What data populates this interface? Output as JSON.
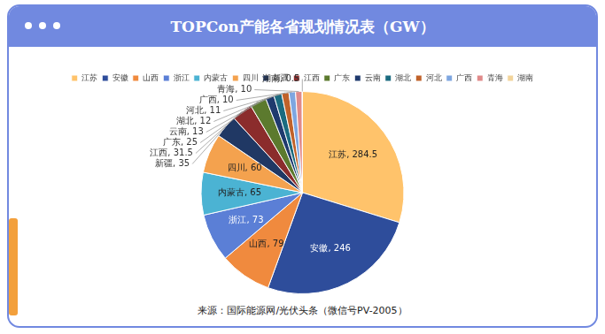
{
  "chart_data": {
    "type": "pie",
    "title": "TOPCon产能各省规划情况表（GW）",
    "source": "来源：国际能源网/光伏头条（微信号PV-2005）",
    "categories": [
      "江苏",
      "安徽",
      "山西",
      "浙江",
      "内蒙古",
      "四川",
      "新疆",
      "江西",
      "广东",
      "云南",
      "湖北",
      "河北",
      "广西",
      "青海",
      "湖南"
    ],
    "values": [
      284.5,
      246,
      79,
      73,
      65,
      60,
      35,
      31.5,
      25,
      13,
      12,
      11,
      10,
      10,
      0.5
    ],
    "value_labels": [
      "江苏, 284.5",
      "安徽, 246",
      "山西, 79",
      "浙江, 73",
      "内蒙古, 65",
      "四川, 60",
      "新疆, 35",
      "江西, 31.5",
      "广东, 25",
      "云南, 13",
      "湖北, 12",
      "河北, 11",
      "广西, 10",
      "青海, 10",
      "湖南, 0.5"
    ],
    "colors": [
      "#ffc36b",
      "#2e4d9b",
      "#f08a3e",
      "#5b7fd6",
      "#4bb3d3",
      "#f4a24e",
      "#203864",
      "#8b2c2c",
      "#5c7a2e",
      "#1f3a6e",
      "#1b6b80",
      "#c0622a",
      "#7ea6e0",
      "#e08a8a",
      "#f2d49b"
    ],
    "legend": "top",
    "data_labels": true
  }
}
